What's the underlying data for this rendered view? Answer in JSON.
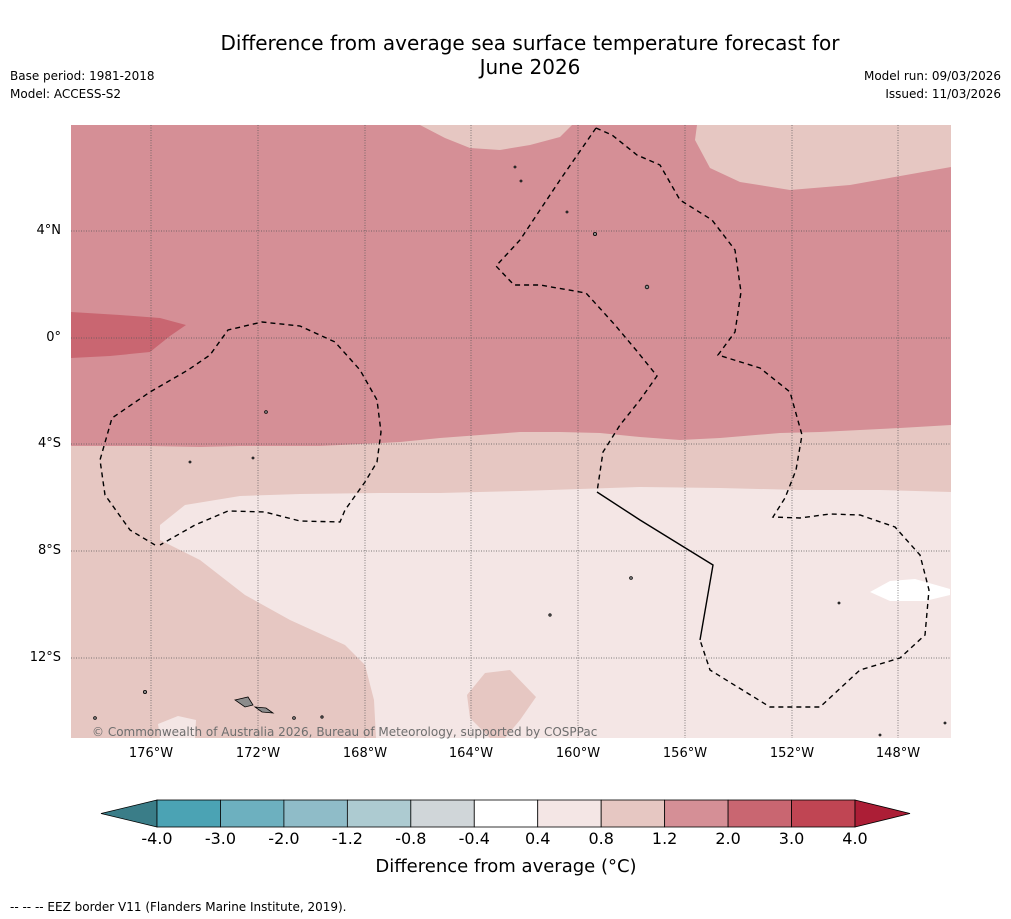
{
  "header": {
    "title_line1": "Difference from average sea surface temperature forecast for",
    "title_line2": "June 2026",
    "base_period": "Base period: 1981-2018",
    "model": "Model: ACCESS-S2",
    "model_run": "Model run: 09/03/2026",
    "issued": "Issued: 11/03/2026"
  },
  "map": {
    "lat_labels": [
      "4°N",
      "0°",
      "4°S",
      "8°S",
      "12°S"
    ],
    "lon_labels": [
      "176°W",
      "172°W",
      "168°W",
      "164°W",
      "160°W",
      "156°W",
      "152°W",
      "148°W"
    ],
    "copyright": "© Commonwealth of Australia 2026, Bureau of Meteorology, supported by COSPPac"
  },
  "colorbar": {
    "ticks": [
      "-4.0",
      "-3.0",
      "-2.0",
      "-1.2",
      "-0.8",
      "-0.4",
      "0.4",
      "0.8",
      "1.2",
      "2.0",
      "3.0",
      "4.0"
    ],
    "colors": [
      "#3a7d88",
      "#4ba3b4",
      "#6db0bf",
      "#8fbcc8",
      "#adcbd1",
      "#d0d6d9",
      "#ffffff",
      "#f4e6e5",
      "#e6c7c2",
      "#d58f96",
      "#c96671",
      "#c04553",
      "#ac1e36"
    ],
    "label": "Difference from average (°C)"
  },
  "legend": {
    "eez_note": "--  --  -- EEZ border V11 (Flanders Marine Institute, 2019)."
  }
}
